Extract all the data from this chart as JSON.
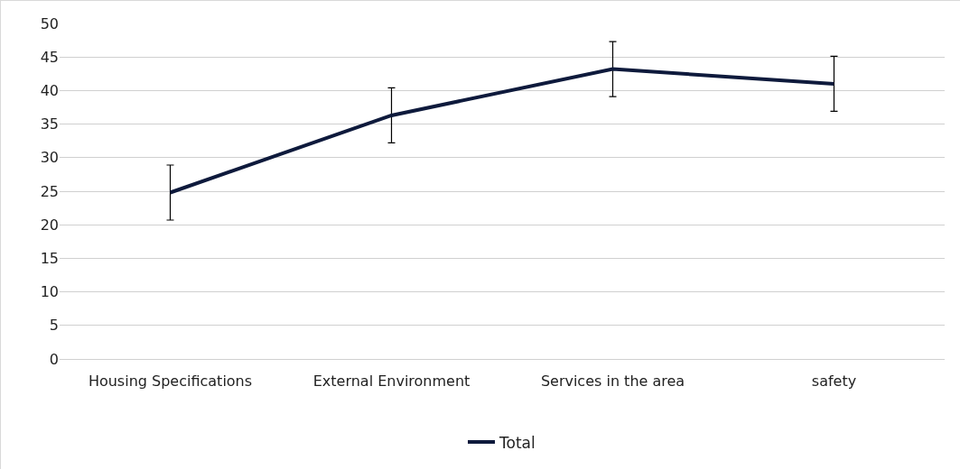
{
  "chart_data": {
    "type": "line",
    "categories": [
      "Housing Specifications",
      "External Environment",
      "Services in the area",
      "safety"
    ],
    "series": [
      {
        "name": "Total",
        "color": "#0e1a3c",
        "values": [
          24.8,
          36.3,
          43.2,
          41.0
        ],
        "errors": [
          4.1,
          4.1,
          4.1,
          4.1
        ]
      }
    ],
    "ylim": [
      0,
      50
    ],
    "yticks": [
      0,
      5,
      10,
      15,
      20,
      25,
      30,
      35,
      40,
      45,
      50
    ],
    "grid": "y",
    "legend": "bottom",
    "marker": "none",
    "line_style": "solid"
  }
}
